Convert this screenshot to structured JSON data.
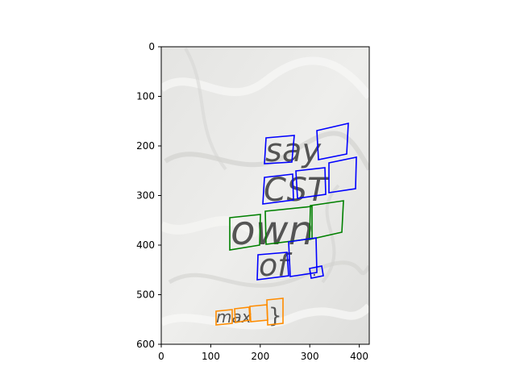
{
  "axes": {
    "x_ticks": [
      "0",
      "100",
      "200",
      "300",
      "400"
    ],
    "y_ticks": [
      "0",
      "100",
      "200",
      "300",
      "400",
      "500",
      "600"
    ],
    "xlim": [
      0,
      420
    ],
    "ylim": [
      600,
      0
    ]
  },
  "image_words": {
    "say": "say",
    "cst": "CST",
    "own": "own",
    "of": "of",
    "dot": ".",
    "max": "max",
    "brace": "}"
  },
  "box_colors": {
    "blue": "#0000ff",
    "green": "#008000",
    "orange": "#ff8c00"
  }
}
